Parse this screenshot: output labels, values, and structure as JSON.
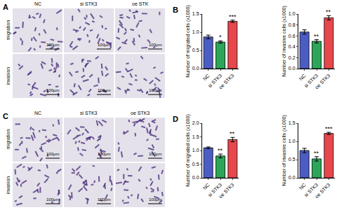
{
  "chart_data": [
    {
      "type": "bar",
      "panel": "B",
      "y_label": "Number of migrated cells (x1000)",
      "categories": [
        "NC",
        "si STK3",
        "oe STK3"
      ],
      "values": [
        0.87,
        0.73,
        1.3
      ],
      "errors": [
        0.05,
        0.03,
        0.03
      ],
      "colors": [
        "#4b5cc4",
        "#2da65a",
        "#e8474c"
      ],
      "ylim": [
        0,
        1.5
      ],
      "yticks": [
        {
          "value": 0,
          "label": "0.0"
        },
        0.5,
        {
          "value": 1,
          "label": "1.0"
        },
        1.5
      ],
      "annotations": [
        {
          "category": "si STK3",
          "text": "*"
        },
        {
          "category": "oe STK3",
          "text": "***"
        }
      ]
    },
    {
      "type": "bar",
      "y_label": "Number of invasive cells (x1000)",
      "categories": [
        "NC",
        "si STK3",
        "oe STK3"
      ],
      "values": [
        0.67,
        0.5,
        0.93
      ],
      "errors": [
        0.04,
        0.03,
        0.04
      ],
      "colors": [
        "#4b5cc4",
        "#2da65a",
        "#e8474c"
      ],
      "ylim": [
        0,
        1
      ],
      "yticks": [
        {
          "value": 0,
          "label": "0.0"
        },
        0.2,
        0.4,
        0.6,
        0.8,
        {
          "value": 1,
          "label": "1.0"
        }
      ],
      "annotations": [
        {
          "category": "si STK3",
          "text": "**"
        },
        {
          "category": "oe STK3",
          "text": "**"
        }
      ]
    },
    {
      "type": "bar",
      "panel": "D",
      "y_label": "Number of migrated cells (x1000)",
      "categories": [
        "NC",
        "si STK3",
        "oe STK3"
      ],
      "values": [
        1.1,
        0.8,
        1.4
      ],
      "errors": [
        0.03,
        0.07,
        0.08
      ],
      "colors": [
        "#4b5cc4",
        "#2da65a",
        "#e8474c"
      ],
      "ylim": [
        0,
        2
      ],
      "yticks": [
        {
          "value": 0,
          "label": "0.0"
        },
        0.5,
        {
          "value": 1,
          "label": "1.0"
        },
        1.5,
        {
          "value": 2,
          "label": "2.0"
        }
      ],
      "annotations": [
        {
          "category": "si STK3",
          "text": "**"
        },
        {
          "category": "oe STK3",
          "text": "**"
        }
      ]
    },
    {
      "type": "bar",
      "y_label": "Number of invasive cells (x1000)",
      "categories": [
        "NC",
        "si STK3",
        "oe STK3"
      ],
      "values": [
        0.75,
        0.52,
        1.22
      ],
      "errors": [
        0.06,
        0.06,
        0.03
      ],
      "colors": [
        "#4b5cc4",
        "#2da65a",
        "#e8474c"
      ],
      "ylim": [
        0,
        1.5
      ],
      "yticks": [
        {
          "value": 0,
          "label": "0.0"
        },
        0.5,
        {
          "value": 1,
          "label": "1.0"
        },
        1.5
      ],
      "annotations": [
        {
          "category": "si STK3",
          "text": "**"
        },
        {
          "category": "oe STK3",
          "text": "***"
        }
      ]
    }
  ],
  "image_panels": [
    {
      "label": "A",
      "columns": [
        "NC",
        "si STK3",
        "oe STK"
      ],
      "rows": [
        "migration",
        "invasion"
      ],
      "scale_bar": "100μm"
    },
    {
      "label": "C",
      "columns": [
        "NC",
        "si STK3",
        "oe STK3"
      ],
      "rows": [
        "migration",
        "invasion"
      ],
      "scale_bar": "100μm"
    }
  ]
}
